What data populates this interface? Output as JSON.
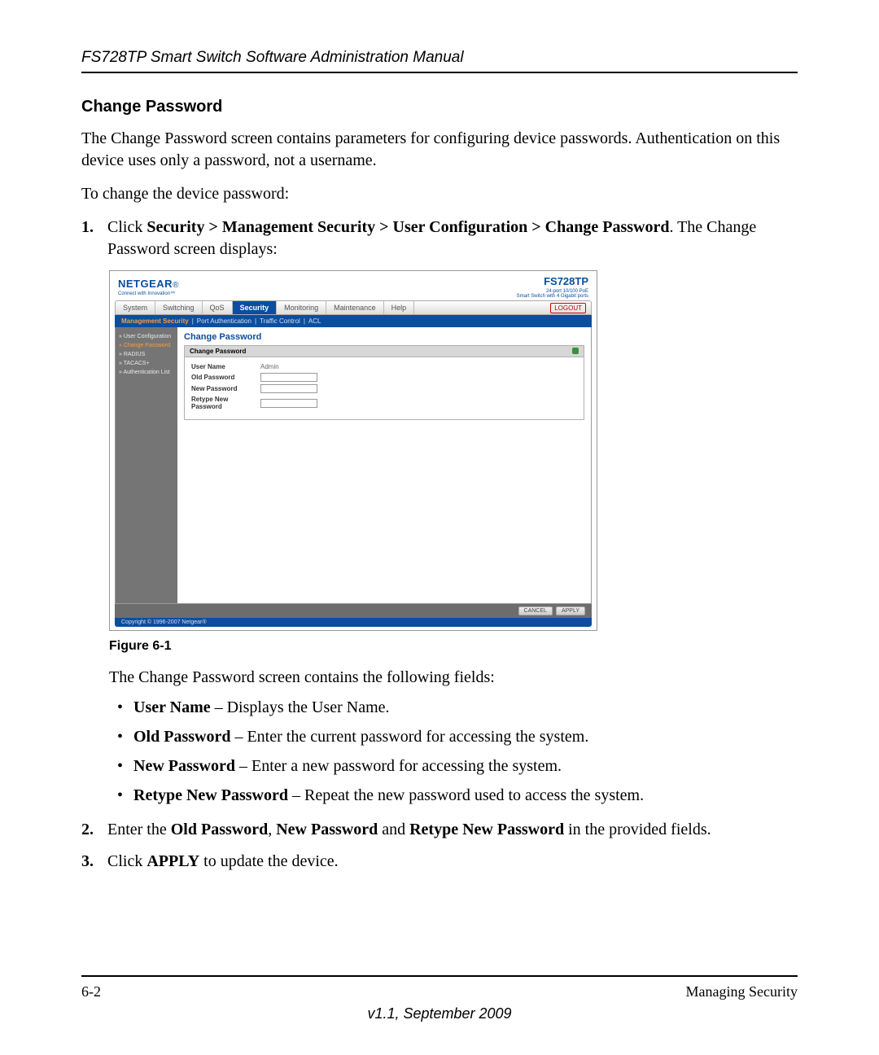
{
  "page": {
    "header_title": "FS728TP Smart Switch Software Administration Manual",
    "section_title": "Change Password",
    "intro_para": "The Change Password screen contains parameters for configuring device passwords. Authentication on this device uses only a password, not a username.",
    "intro_para2": "To change the device password:",
    "step1_prefix": "Click ",
    "step1_bold": "Security > Management Security > User Configuration > Change Password",
    "step1_suffix": ". The Change Password screen displays:",
    "figure_caption": "Figure 6-1",
    "fields_intro": "The Change Password screen contains the following fields:",
    "field1_bold": "User Name",
    "field1_rest": " – Displays the User Name.",
    "field2_bold": "Old Password",
    "field2_rest": " – Enter the current password for accessing the system.",
    "field3_bold": "New Password",
    "field3_rest": " – Enter a new password for accessing the system.",
    "field4_bold": "Retype New Password",
    "field4_rest": " – Repeat the new password used to access the system.",
    "step2_prefix": "Enter the ",
    "step2_b1": "Old Password",
    "step2_m1": ", ",
    "step2_b2": "New Password",
    "step2_m2": " and ",
    "step2_b3": "Retype New Password",
    "step2_suffix": " in the provided fields.",
    "step3_prefix": "Click ",
    "step3_bold": "APPLY",
    "step3_suffix": " to update the device.",
    "footer_page": "6-2",
    "footer_section": "Managing Security",
    "footer_version": "v1.1, September 2009",
    "num1": "1.",
    "num2": "2.",
    "num3": "3.",
    "bullet": "•"
  },
  "screenshot": {
    "brand": "NETGEAR",
    "brand_tag": "Connect with Innovation™",
    "model": "FS728TP",
    "model_sub1": "24-port 10/100 PoE",
    "model_sub2": "Smart Switch with 4 Gigabit ports",
    "tabs": [
      "System",
      "Switching",
      "QoS",
      "Security",
      "Monitoring",
      "Maintenance",
      "Help"
    ],
    "active_tab": "Security",
    "logout": "LOGOUT",
    "subnav": [
      "Management Security",
      "Port Authentication",
      "Traffic Control",
      "ACL"
    ],
    "active_subnav": "Management Security",
    "sidebar": [
      "» User Configuration",
      "  » Change Password",
      "» RADIUS",
      "» TACACS+",
      "» Authentication List"
    ],
    "sidebar_active_index": 1,
    "panel_title": "Change Password",
    "panel_subtitle": "Change Password",
    "rows": {
      "user_name_label": "User Name",
      "user_name_value": "Admin",
      "old_pw_label": "Old Password",
      "new_pw_label": "New Password",
      "retype_pw_label": "Retype New Password"
    },
    "btn_cancel": "CANCEL",
    "btn_apply": "APPLY",
    "copyright": "Copyright © 1996-2007 Netgear®"
  }
}
